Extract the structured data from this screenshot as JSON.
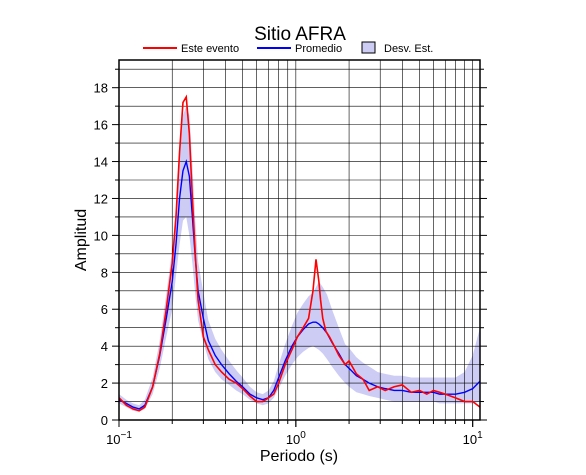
{
  "chart_data": {
    "type": "line",
    "title": "Sitio AFRA",
    "xlabel": "Periodo (s)",
    "ylabel": "Amplitud",
    "x_scale": "log",
    "xlim": [
      0.1,
      11
    ],
    "ylim": [
      0,
      19.5
    ],
    "grid": true,
    "legend_placement": "top",
    "y_ticks": [
      0,
      2,
      4,
      6,
      8,
      10,
      12,
      14,
      16,
      18
    ],
    "y_tick_labels": [
      "0",
      "2",
      "4",
      "6",
      "8",
      "10",
      "12",
      "14",
      "16",
      "18"
    ],
    "x_ticks": [
      0.1,
      1,
      10
    ],
    "x_tick_labels": [
      {
        "base": "10",
        "exp": "−1"
      },
      {
        "base": "10",
        "exp": "0"
      },
      {
        "base": "10",
        "exp": "1"
      }
    ],
    "legend": [
      {
        "label": "Este evento",
        "kind": "line",
        "color": "#ff0000"
      },
      {
        "label": "Promedio",
        "kind": "line",
        "color": "#0000ff"
      },
      {
        "label": "Desv. Est.",
        "kind": "box",
        "color": "#ccccf5"
      }
    ],
    "series": [
      {
        "name": "Este evento",
        "color": "#ff0000",
        "x": [
          0.1,
          0.11,
          0.12,
          0.13,
          0.14,
          0.155,
          0.17,
          0.185,
          0.2,
          0.21,
          0.22,
          0.23,
          0.24,
          0.25,
          0.26,
          0.27,
          0.28,
          0.3,
          0.32,
          0.35,
          0.38,
          0.42,
          0.46,
          0.5,
          0.55,
          0.6,
          0.65,
          0.7,
          0.75,
          0.8,
          0.87,
          0.95,
          1.02,
          1.1,
          1.18,
          1.25,
          1.3,
          1.35,
          1.38,
          1.42,
          1.48,
          1.55,
          1.65,
          1.75,
          1.9,
          2.0,
          2.2,
          2.4,
          2.6,
          2.9,
          3.2,
          3.6,
          4.0,
          4.5,
          5.0,
          5.5,
          6.0,
          6.5,
          7.0,
          8.0,
          9.0,
          10.0,
          11.0
        ],
        "y": [
          1.2,
          0.8,
          0.6,
          0.5,
          0.7,
          1.8,
          3.6,
          6.0,
          8.5,
          11.0,
          14.5,
          17.2,
          17.5,
          15.5,
          12.0,
          9.0,
          6.5,
          4.5,
          3.8,
          3.0,
          2.6,
          2.2,
          2.0,
          1.7,
          1.3,
          1.0,
          1.0,
          1.2,
          1.4,
          2.0,
          3.0,
          3.8,
          4.5,
          5.0,
          5.5,
          7.0,
          8.7,
          7.5,
          6.5,
          5.5,
          4.8,
          4.5,
          4.0,
          3.5,
          3.0,
          3.2,
          2.5,
          2.2,
          1.6,
          1.8,
          1.6,
          1.8,
          1.9,
          1.5,
          1.6,
          1.4,
          1.6,
          1.5,
          1.4,
          1.2,
          1.0,
          1.0,
          0.7
        ]
      },
      {
        "name": "Promedio",
        "color": "#0000ff",
        "x": [
          0.1,
          0.11,
          0.12,
          0.13,
          0.14,
          0.155,
          0.17,
          0.185,
          0.2,
          0.21,
          0.22,
          0.23,
          0.24,
          0.25,
          0.26,
          0.27,
          0.28,
          0.3,
          0.32,
          0.35,
          0.38,
          0.42,
          0.46,
          0.5,
          0.55,
          0.6,
          0.65,
          0.7,
          0.75,
          0.8,
          0.87,
          0.95,
          1.02,
          1.1,
          1.18,
          1.25,
          1.3,
          1.35,
          1.42,
          1.5,
          1.6,
          1.75,
          1.9,
          2.0,
          2.2,
          2.4,
          2.6,
          2.9,
          3.2,
          3.6,
          4.0,
          4.5,
          5.0,
          5.5,
          6.0,
          6.5,
          7.0,
          8.0,
          9.0,
          10.0,
          11.0
        ],
        "y": [
          1.1,
          0.9,
          0.7,
          0.6,
          0.8,
          1.8,
          3.5,
          5.5,
          7.5,
          9.5,
          12.0,
          13.5,
          14.0,
          13.2,
          11.0,
          8.8,
          7.0,
          5.5,
          4.3,
          3.5,
          3.0,
          2.5,
          2.1,
          1.8,
          1.4,
          1.2,
          1.1,
          1.2,
          1.6,
          2.3,
          3.2,
          4.0,
          4.5,
          4.9,
          5.2,
          5.3,
          5.3,
          5.2,
          5.0,
          4.7,
          4.2,
          3.6,
          3.0,
          2.8,
          2.4,
          2.2,
          2.0,
          1.8,
          1.7,
          1.6,
          1.6,
          1.5,
          1.5,
          1.5,
          1.5,
          1.4,
          1.4,
          1.4,
          1.5,
          1.7,
          2.1
        ]
      }
    ],
    "band": {
      "name": "Desv. Est.",
      "color": "#ccccf5",
      "x": [
        0.1,
        0.11,
        0.12,
        0.13,
        0.14,
        0.155,
        0.17,
        0.185,
        0.2,
        0.21,
        0.22,
        0.23,
        0.24,
        0.25,
        0.26,
        0.27,
        0.28,
        0.3,
        0.32,
        0.35,
        0.38,
        0.42,
        0.46,
        0.5,
        0.55,
        0.6,
        0.65,
        0.7,
        0.75,
        0.8,
        0.87,
        0.95,
        1.02,
        1.1,
        1.18,
        1.25,
        1.3,
        1.35,
        1.42,
        1.5,
        1.6,
        1.75,
        1.9,
        2.0,
        2.2,
        2.4,
        2.6,
        2.9,
        3.2,
        3.6,
        4.0,
        4.5,
        5.0,
        5.5,
        6.0,
        6.5,
        7.0,
        8.0,
        9.0,
        10.0,
        11.0
      ],
      "lower": [
        0.9,
        0.7,
        0.5,
        0.45,
        0.6,
        1.4,
        2.8,
        4.5,
        6.0,
        7.8,
        9.5,
        10.8,
        11.0,
        10.0,
        8.5,
        6.8,
        5.4,
        4.2,
        3.3,
        2.6,
        2.2,
        1.9,
        1.6,
        1.4,
        1.1,
        0.9,
        0.8,
        0.9,
        1.2,
        1.7,
        2.4,
        3.0,
        3.4,
        3.7,
        3.9,
        4.0,
        3.9,
        3.8,
        3.6,
        3.3,
        2.9,
        2.4,
        2.0,
        1.8,
        1.5,
        1.4,
        1.3,
        1.2,
        1.1,
        1.0,
        1.0,
        1.0,
        1.0,
        1.0,
        1.0,
        0.9,
        0.9,
        0.9,
        0.9,
        0.9,
        1.0
      ],
      "upper": [
        1.4,
        1.1,
        0.9,
        0.8,
        1.1,
        2.3,
        4.3,
        6.8,
        9.2,
        11.5,
        14.8,
        16.5,
        17.0,
        16.5,
        13.8,
        10.8,
        8.6,
        6.9,
        5.4,
        4.4,
        3.8,
        3.2,
        2.7,
        2.3,
        1.8,
        1.5,
        1.4,
        1.6,
        2.1,
        3.0,
        4.1,
        5.1,
        5.8,
        6.3,
        6.7,
        6.9,
        7.2,
        7.5,
        7.2,
        6.8,
        6.0,
        5.0,
        4.1,
        3.9,
        3.4,
        3.1,
        2.9,
        2.6,
        2.5,
        2.4,
        2.4,
        2.3,
        2.3,
        2.3,
        2.3,
        2.3,
        2.3,
        2.3,
        2.6,
        3.5,
        5.0
      ]
    }
  }
}
